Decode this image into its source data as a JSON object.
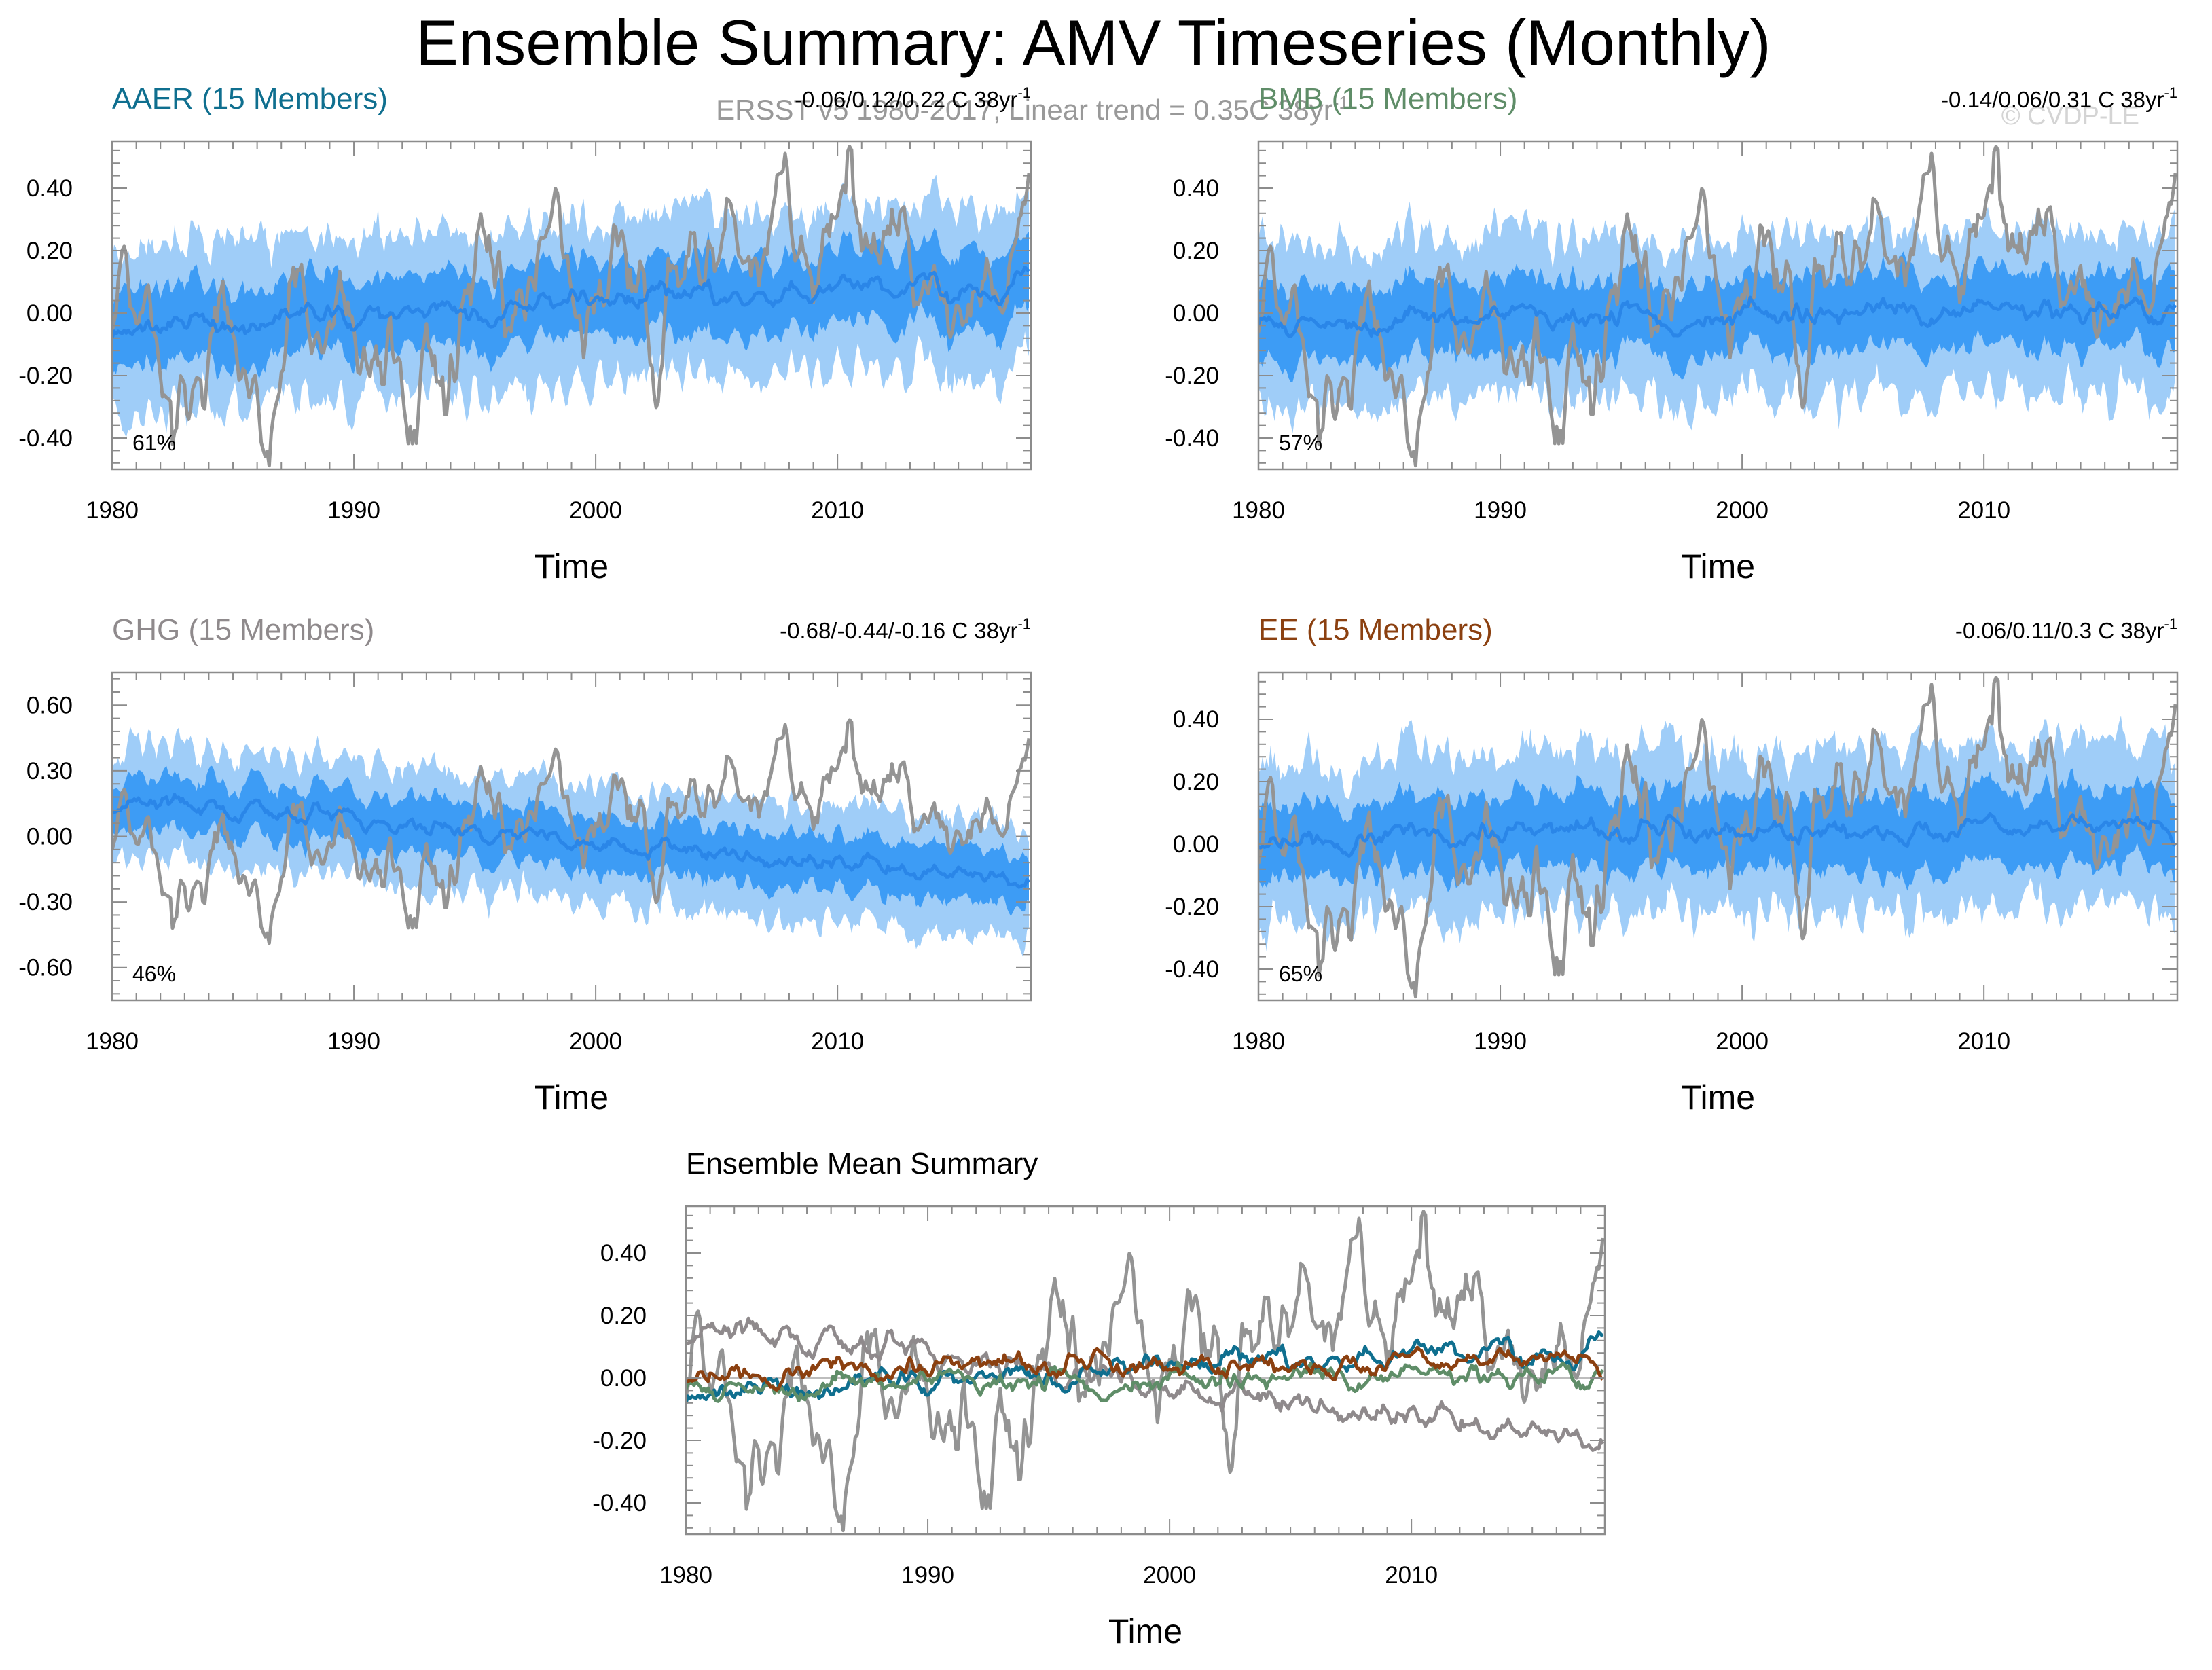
{
  "title": "Ensemble Summary: AMV Timeseries (Monthly)",
  "subtitle": "ERSST v5 1980-2017, Linear trend = 0.35C 38yr",
  "subtitle_exponent": "-1",
  "watermark": "© CVDP-LE",
  "colors": {
    "observed": "#949494",
    "band_outer": "#9fcdf8",
    "band_inner": "#3d9cf5",
    "ens_mean": "#2a86e8",
    "AAER": "#0f6f8f",
    "BMB": "#5f8d68",
    "GHG": "#8f8a8c",
    "EE": "#8b4010"
  },
  "chart_data": [
    {
      "type": "line",
      "name": "AAER",
      "title": "AAER (15 Members)",
      "title_color": "#0f6f8f",
      "trend_text": "-0.06/0.12/0.22 C 38yr",
      "trend_exp": "-1",
      "percent": "61%",
      "xlabel": "Time",
      "xlim": [
        1980,
        2018
      ],
      "ylim": [
        -0.5,
        0.55
      ],
      "xticks": [
        1980,
        1990,
        2000,
        2010
      ],
      "xtick_labels": [
        "1980",
        "1990",
        "2000",
        "2010"
      ],
      "yticks": [
        -0.4,
        -0.2,
        0.0,
        0.2,
        0.4
      ],
      "ytick_labels": [
        "-0.40",
        "-0.20",
        "0.00",
        "0.20",
        "0.40"
      ],
      "ens_mean": {
        "start": -0.04,
        "end": 0.1,
        "amp": 0.05
      }
    },
    {
      "type": "line",
      "name": "BMB",
      "title": "BMB (15 Members)",
      "title_color": "#5f8d68",
      "trend_text": "-0.14/0.06/0.31 C 38yr",
      "trend_exp": "-1",
      "percent": "57%",
      "xlabel": "Time",
      "xlim": [
        1980,
        2018
      ],
      "ylim": [
        -0.5,
        0.55
      ],
      "xticks": [
        1980,
        1990,
        2000,
        2010
      ],
      "xtick_labels": [
        "1980",
        "1990",
        "2000",
        "2010"
      ],
      "yticks": [
        -0.4,
        -0.2,
        0.0,
        0.2,
        0.4
      ],
      "ytick_labels": [
        "-0.40",
        "-0.20",
        "0.00",
        "0.20",
        "0.40"
      ],
      "ens_mean": {
        "start": -0.03,
        "end": 0.02,
        "amp": 0.05
      }
    },
    {
      "type": "line",
      "name": "GHG",
      "title": "GHG (15 Members)",
      "title_color": "#8f8a8c",
      "trend_text": "-0.68/-0.44/-0.16 C 38yr",
      "trend_exp": "-1",
      "percent": "46%",
      "xlabel": "Time",
      "xlim": [
        1980,
        2018
      ],
      "ylim": [
        -0.75,
        0.75
      ],
      "xticks": [
        1980,
        1990,
        2000,
        2010
      ],
      "xtick_labels": [
        "1980",
        "1990",
        "2000",
        "2010"
      ],
      "yticks": [
        -0.6,
        -0.3,
        0.0,
        0.3,
        0.6
      ],
      "ytick_labels": [
        "-0.60",
        "-0.30",
        "0.00",
        "0.30",
        "0.60"
      ],
      "ens_mean": {
        "start": 0.18,
        "end": -0.22,
        "amp": 0.06
      }
    },
    {
      "type": "line",
      "name": "EE",
      "title": "EE (15 Members)",
      "title_color": "#8b4010",
      "trend_text": "-0.06/0.11/0.3 C 38yr",
      "trend_exp": "-1",
      "percent": "65%",
      "xlabel": "Time",
      "xlim": [
        1980,
        2018
      ],
      "ylim": [
        -0.5,
        0.55
      ],
      "xticks": [
        1980,
        1990,
        2000,
        2010
      ],
      "xtick_labels": [
        "1980",
        "1990",
        "2000",
        "2010"
      ],
      "yticks": [
        -0.4,
        -0.2,
        0.0,
        0.2,
        0.4
      ],
      "ytick_labels": [
        "-0.40",
        "-0.20",
        "0.00",
        "0.20",
        "0.40"
      ],
      "ens_mean": {
        "start": 0.03,
        "end": 0.05,
        "amp": 0.05
      }
    },
    {
      "type": "line",
      "name": "ensemble-mean",
      "title": "Ensemble Mean Summary",
      "title_color": "#000000",
      "xlabel": "Time",
      "xlim": [
        1980,
        2018
      ],
      "ylim": [
        -0.5,
        0.55
      ],
      "xticks": [
        1980,
        1990,
        2000,
        2010
      ],
      "xtick_labels": [
        "1980",
        "1990",
        "2000",
        "2010"
      ],
      "yticks": [
        -0.4,
        -0.2,
        0.0,
        0.2,
        0.4
      ],
      "ytick_labels": [
        "-0.40",
        "-0.20",
        "0.00",
        "0.20",
        "0.40"
      ],
      "series": [
        "observed",
        "GHG",
        "AAER",
        "BMB",
        "EE"
      ]
    }
  ],
  "observed_anchors": [
    [
      1980.0,
      -0.05
    ],
    [
      1980.4,
      0.18
    ],
    [
      1981.0,
      -0.05
    ],
    [
      1981.7,
      0.05
    ],
    [
      1982.5,
      -0.45
    ],
    [
      1983.0,
      -0.2
    ],
    [
      1983.8,
      -0.3
    ],
    [
      1984.5,
      0.05
    ],
    [
      1985.5,
      -0.25
    ],
    [
      1986.5,
      -0.42
    ],
    [
      1987.0,
      -0.15
    ],
    [
      1987.5,
      0.1
    ],
    [
      1988.5,
      -0.15
    ],
    [
      1989.5,
      0.05
    ],
    [
      1990.5,
      -0.2
    ],
    [
      1991.5,
      -0.05
    ],
    [
      1992.3,
      -0.4
    ],
    [
      1993.0,
      -0.1
    ],
    [
      1993.8,
      -0.35
    ],
    [
      1994.5,
      0.0
    ],
    [
      1995.5,
      0.25
    ],
    [
      1996.5,
      -0.05
    ],
    [
      1997.5,
      0.15
    ],
    [
      1998.3,
      0.35
    ],
    [
      1999.0,
      0.1
    ],
    [
      1999.5,
      -0.1
    ],
    [
      2000.3,
      0.05
    ],
    [
      2001.0,
      0.2
    ],
    [
      2002.0,
      0.1
    ],
    [
      2002.5,
      -0.3
    ],
    [
      2003.0,
      0.15
    ],
    [
      2004.0,
      0.3
    ],
    [
      2004.5,
      0.1
    ],
    [
      2005.5,
      0.35
    ],
    [
      2006.2,
      0.15
    ],
    [
      2007.0,
      0.15
    ],
    [
      2007.8,
      0.45
    ],
    [
      2008.3,
      0.2
    ],
    [
      2009.0,
      0.05
    ],
    [
      2010.0,
      0.3
    ],
    [
      2010.5,
      0.52
    ],
    [
      2011.0,
      0.1
    ],
    [
      2011.8,
      0.25
    ],
    [
      2012.5,
      0.3
    ],
    [
      2013.3,
      0.05
    ],
    [
      2014.0,
      0.1
    ],
    [
      2014.5,
      -0.05
    ],
    [
      2015.0,
      -0.1
    ],
    [
      2015.5,
      0.0
    ],
    [
      2016.0,
      0.15
    ],
    [
      2016.7,
      0.05
    ],
    [
      2017.3,
      0.15
    ],
    [
      2018.0,
      0.43
    ]
  ]
}
